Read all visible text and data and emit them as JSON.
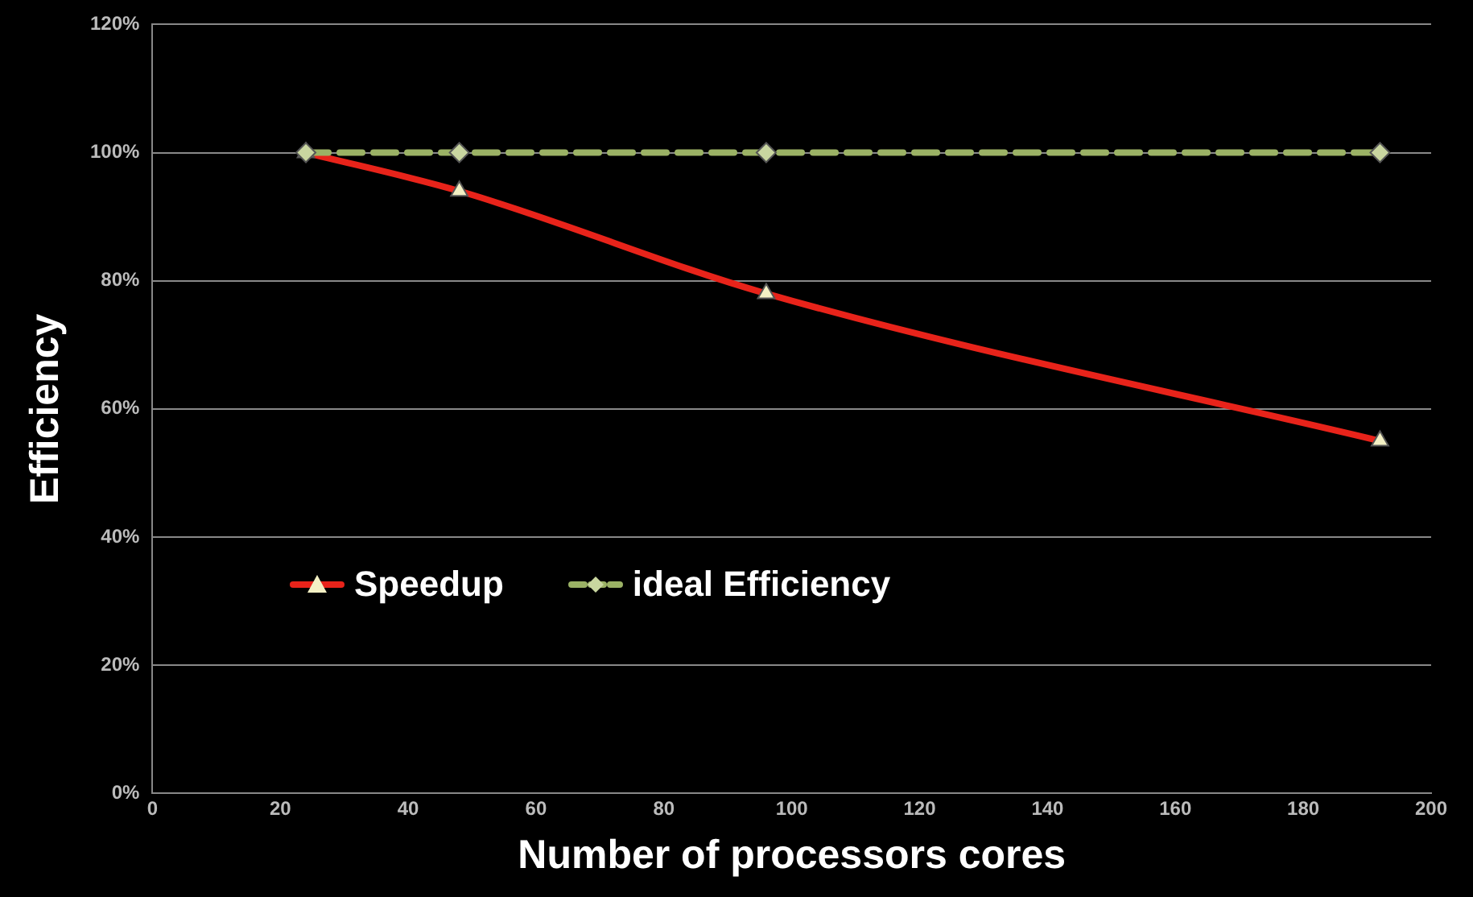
{
  "chart_data": {
    "type": "line",
    "xlabel": "Number of processors cores",
    "ylabel": "Efficiency",
    "xlim": [
      0,
      200
    ],
    "xticks": [
      0,
      20,
      40,
      60,
      80,
      100,
      120,
      140,
      160,
      180,
      200
    ],
    "ylim": [
      0,
      120
    ],
    "yticks": [
      {
        "value": 0,
        "label": "0%"
      },
      {
        "value": 20,
        "label": "20%"
      },
      {
        "value": 40,
        "label": "40%"
      },
      {
        "value": 60,
        "label": "60%"
      },
      {
        "value": 80,
        "label": "80%"
      },
      {
        "value": 100,
        "label": "100%"
      },
      {
        "value": 120,
        "label": "120%"
      }
    ],
    "grid": "y",
    "legend": "left",
    "series": [
      {
        "name": "Speedup",
        "color": "#e8231a",
        "x": [
          24,
          48,
          96,
          192
        ],
        "values": [
          100,
          94,
          78,
          55
        ],
        "marker": "triangle",
        "line_style": "solid"
      },
      {
        "name": "ideal Efficiency",
        "color": "#9bb265",
        "x": [
          24,
          48,
          96,
          192
        ],
        "values": [
          100,
          100,
          100,
          100
        ],
        "marker": "diamond",
        "line_style": "dashed"
      }
    ]
  }
}
